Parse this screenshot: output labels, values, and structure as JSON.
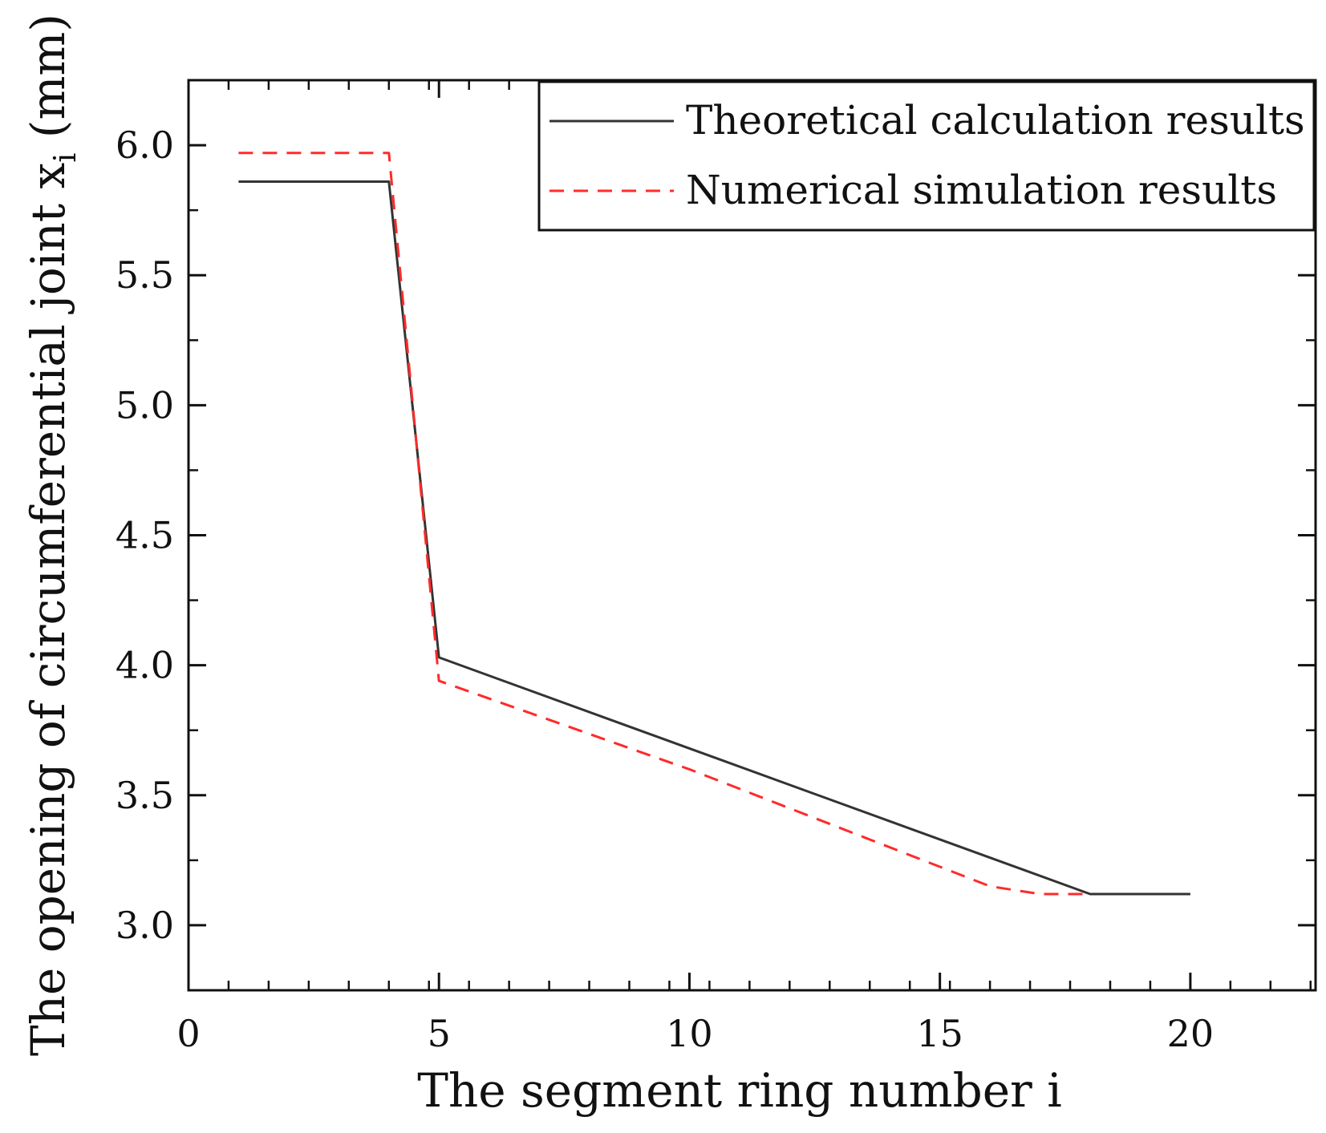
{
  "chart_data": {
    "type": "line",
    "title": "",
    "xlabel": "The segment ring number i",
    "ylabel": {
      "prefix": "The opening of circumferential joint x",
      "subscript": "i",
      "suffix": " (mm)"
    },
    "xlim": [
      0,
      22.5
    ],
    "ylim": [
      2.75,
      6.25
    ],
    "xticks": [
      0,
      5,
      10,
      15,
      20
    ],
    "xtick_labels": [
      "0",
      "5",
      "10",
      "15",
      "20"
    ],
    "yticks": [
      3.0,
      3.5,
      4.0,
      4.5,
      5.0,
      5.5,
      6.0
    ],
    "ytick_labels": [
      "3.0",
      "3.5",
      "4.0",
      "4.5",
      "5.0",
      "5.5",
      "6.0"
    ],
    "x_minor_step": 0.8,
    "y_minor_step": 0.25,
    "grid": false,
    "legend_position": "top-right",
    "series": [
      {
        "name": "Theoretical calculation results",
        "color": "#333333",
        "style": "solid",
        "points": [
          [
            1,
            5.86
          ],
          [
            4,
            5.86
          ],
          [
            5,
            4.03
          ],
          [
            18,
            3.12
          ],
          [
            20,
            3.12
          ]
        ]
      },
      {
        "name": "Numerical simulation results",
        "color": "#ff2a2a",
        "style": "dashed",
        "points": [
          [
            1,
            5.97
          ],
          [
            4,
            5.97
          ],
          [
            5,
            3.94
          ],
          [
            10,
            3.6
          ],
          [
            16,
            3.15
          ],
          [
            17,
            3.12
          ],
          [
            18,
            3.12
          ]
        ]
      }
    ]
  }
}
